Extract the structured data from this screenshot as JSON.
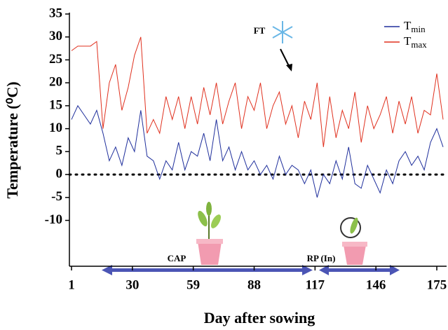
{
  "chart_data": {
    "type": "line",
    "ylabel": "Temperature (⁰C)",
    "xlabel": "Day after sowing",
    "x": [
      1,
      4,
      7,
      10,
      13,
      16,
      19,
      22,
      25,
      28,
      31,
      34,
      37,
      40,
      43,
      46,
      49,
      52,
      55,
      58,
      61,
      64,
      67,
      70,
      73,
      76,
      79,
      82,
      85,
      88,
      91,
      94,
      97,
      100,
      103,
      106,
      109,
      112,
      115,
      118,
      121,
      124,
      127,
      130,
      133,
      136,
      139,
      142,
      145,
      148,
      151,
      154,
      157,
      160,
      163,
      166,
      169,
      172,
      175,
      178
    ],
    "series": [
      {
        "name": "Tmin",
        "color": "#1f2f9c",
        "values": [
          12,
          15,
          13,
          11,
          14,
          9,
          3,
          6,
          2,
          8,
          5,
          14,
          4,
          3,
          -1,
          3,
          1,
          7,
          1,
          5,
          4,
          9,
          3,
          12,
          3,
          6,
          1,
          5,
          1,
          3,
          0,
          2,
          -1,
          4,
          0,
          2,
          1,
          -2,
          1,
          -5,
          0,
          -2,
          3,
          -1,
          6,
          -2,
          -3,
          2,
          -1,
          -4,
          1,
          -2,
          3,
          5,
          2,
          4,
          1,
          7,
          10,
          6
        ]
      },
      {
        "name": "Tmax",
        "color": "#e0301e",
        "values": [
          27,
          28,
          28,
          28,
          29,
          10,
          20,
          24,
          14,
          19,
          26,
          30,
          9,
          12,
          9,
          17,
          12,
          17,
          10,
          17,
          11,
          19,
          13,
          20,
          11,
          16,
          20,
          10,
          17,
          14,
          20,
          10,
          15,
          18,
          11,
          15,
          8,
          16,
          12,
          20,
          6,
          17,
          8,
          14,
          10,
          18,
          7,
          15,
          10,
          13,
          17,
          9,
          16,
          11,
          17,
          9,
          14,
          13,
          22,
          12
        ]
      }
    ],
    "xlim": [
      0,
      179
    ],
    "xticks": [
      1,
      30,
      59,
      88,
      117,
      146,
      175
    ],
    "ylim": [
      -20,
      35
    ],
    "yticks": [
      35,
      30,
      25,
      20,
      15,
      10,
      5,
      0,
      -5,
      -10
    ],
    "zero_line": true,
    "legend": "top-right",
    "annotations": [
      "FT",
      "CAP",
      "RP (In)"
    ]
  }
}
